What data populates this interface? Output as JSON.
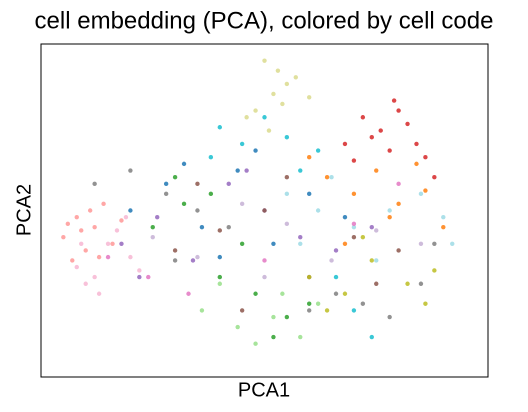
{
  "chart_data": {
    "type": "scatter",
    "title": "cell embedding (PCA), colored by cell code",
    "xlabel": "PCA1",
    "ylabel": "PCA2",
    "xlim": [
      0,
      100
    ],
    "ylim": [
      0,
      100
    ],
    "series": [
      {
        "color": "#ff9896",
        "x": [
          5,
          8,
          10,
          12,
          7,
          14,
          9,
          16,
          11,
          6,
          13,
          18
        ],
        "y": [
          42,
          48,
          38,
          45,
          35,
          52,
          44,
          40,
          50,
          46,
          36,
          47
        ]
      },
      {
        "color": "#f7b6d2",
        "x": [
          8,
          12,
          15,
          10,
          20,
          17,
          22,
          13,
          9,
          19
        ],
        "y": [
          33,
          30,
          40,
          28,
          36,
          44,
          32,
          25,
          40,
          48
        ]
      },
      {
        "color": "#d62728",
        "x": [
          72,
          76,
          80,
          84,
          78,
          74,
          82,
          70,
          86,
          88,
          68,
          79
        ],
        "y": [
          78,
          74,
          80,
          70,
          68,
          72,
          76,
          65,
          66,
          60,
          70,
          83
        ]
      },
      {
        "color": "#dbdb8d",
        "x": [
          50,
          53,
          55,
          52,
          48,
          57,
          54,
          46,
          60,
          51
        ],
        "y": [
          95,
          92,
          88,
          85,
          80,
          90,
          82,
          78,
          84,
          74
        ]
      },
      {
        "color": "#7f7f7f",
        "x": [
          12,
          20,
          28,
          35,
          42,
          60,
          72,
          78,
          85,
          88,
          30,
          66
        ],
        "y": [
          58,
          62,
          55,
          50,
          45,
          20,
          22,
          18,
          28,
          40,
          35,
          25
        ]
      },
      {
        "color": "#17becf",
        "x": [
          40,
          45,
          55,
          62,
          70,
          74,
          38,
          50,
          58,
          66
        ],
        "y": [
          75,
          70,
          72,
          68,
          20,
          12,
          66,
          78,
          62,
          30
        ]
      },
      {
        "color": "#ff7f0e",
        "x": [
          64,
          70,
          75,
          80,
          86,
          90,
          60,
          68,
          78,
          84
        ],
        "y": [
          60,
          55,
          62,
          52,
          56,
          45,
          66,
          40,
          48,
          64
        ]
      },
      {
        "color": "#2ca02c",
        "x": [
          25,
          32,
          40,
          48,
          55,
          60,
          45,
          30,
          52,
          38
        ],
        "y": [
          45,
          52,
          30,
          25,
          18,
          22,
          40,
          60,
          12,
          55
        ]
      },
      {
        "color": "#9edae5",
        "x": [
          55,
          62,
          70,
          78,
          85,
          90,
          92,
          75,
          65,
          58
        ],
        "y": [
          55,
          50,
          45,
          50,
          55,
          48,
          40,
          35,
          60,
          40
        ]
      },
      {
        "color": "#9467bd",
        "x": [
          18,
          26,
          34,
          42,
          50,
          58,
          66,
          74,
          22,
          46
        ],
        "y": [
          40,
          48,
          35,
          58,
          50,
          42,
          38,
          45,
          30,
          62
        ]
      },
      {
        "color": "#8c564b",
        "x": [
          30,
          40,
          50,
          60,
          70,
          80,
          35,
          55,
          75,
          45
        ],
        "y": [
          38,
          44,
          50,
          30,
          42,
          38,
          58,
          60,
          28,
          20
        ]
      },
      {
        "color": "#bcbd22",
        "x": [
          60,
          68,
          74,
          82,
          88,
          72,
          64,
          86
        ],
        "y": [
          30,
          25,
          35,
          28,
          32,
          42,
          20,
          22
        ]
      },
      {
        "color": "#1f77b4",
        "x": [
          20,
          28,
          36,
          44,
          52,
          60,
          68,
          32,
          48,
          40
        ],
        "y": [
          50,
          58,
          45,
          62,
          40,
          55,
          48,
          64,
          68,
          36
        ]
      },
      {
        "color": "#98df8a",
        "x": [
          36,
          44,
          52,
          58,
          40,
          48,
          54,
          62
        ],
        "y": [
          20,
          15,
          18,
          12,
          28,
          10,
          25,
          22
        ]
      },
      {
        "color": "#c5b0d5",
        "x": [
          25,
          35,
          45,
          55,
          65,
          75,
          85,
          50
        ],
        "y": [
          42,
          36,
          52,
          46,
          35,
          44,
          40,
          30
        ]
      },
      {
        "color": "#e377c2",
        "x": [
          15,
          24,
          33,
          50,
          70,
          80
        ],
        "y": [
          36,
          30,
          25,
          35,
          46,
          58
        ]
      }
    ]
  }
}
